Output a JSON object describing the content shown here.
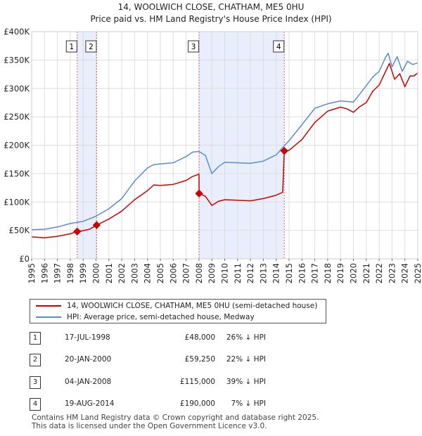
{
  "chart_data": {
    "type": "line",
    "title": "14, WOOLWICH CLOSE, CHATHAM, ME5 0HU",
    "subtitle": "Price paid vs. HM Land Registry's House Price Index (HPI)",
    "xlim": [
      1995,
      2025
    ],
    "ylim": [
      0,
      400000
    ],
    "x_ticks": [
      "1995",
      "1996",
      "1997",
      "1998",
      "1999",
      "2000",
      "2001",
      "2002",
      "2003",
      "2004",
      "2005",
      "2006",
      "2007",
      "2008",
      "2009",
      "2010",
      "2011",
      "2012",
      "2013",
      "2014",
      "2015",
      "2016",
      "2017",
      "2018",
      "2019",
      "2020",
      "2021",
      "2022",
      "2023",
      "2024",
      "2025"
    ],
    "y_ticks": [
      {
        "value": 0,
        "label": "£0"
      },
      {
        "value": 50000,
        "label": "£50K"
      },
      {
        "value": 100000,
        "label": "£100K"
      },
      {
        "value": 150000,
        "label": "£150K"
      },
      {
        "value": 200000,
        "label": "£200K"
      },
      {
        "value": 250000,
        "label": "£250K"
      },
      {
        "value": 300000,
        "label": "£300K"
      },
      {
        "value": 350000,
        "label": "£350K"
      },
      {
        "value": 400000,
        "label": "£400K"
      }
    ],
    "grid": true,
    "shaded_periods": [
      [
        1998.54,
        2000.05
      ],
      [
        2008.01,
        2014.63
      ]
    ],
    "series": [
      {
        "name": "14, WOOLWICH CLOSE, CHATHAM, ME5 0HU (semi-detached house)",
        "color": "#cc0000",
        "points": [
          [
            1995.0,
            38500
          ],
          [
            1996.0,
            37000
          ],
          [
            1997.0,
            39500
          ],
          [
            1998.0,
            44000
          ],
          [
            1998.54,
            48000
          ],
          [
            1999.0,
            49500
          ],
          [
            1999.5,
            52000
          ],
          [
            2000.05,
            59250
          ],
          [
            2001.0,
            70000
          ],
          [
            2002.0,
            84000
          ],
          [
            2003.0,
            104000
          ],
          [
            2004.0,
            120000
          ],
          [
            2004.5,
            130000
          ],
          [
            2005.0,
            129000
          ],
          [
            2006.0,
            131000
          ],
          [
            2007.0,
            138000
          ],
          [
            2007.5,
            145000
          ],
          [
            2008.0,
            149000
          ],
          [
            2008.01,
            115000
          ],
          [
            2008.5,
            110000
          ],
          [
            2009.0,
            94000
          ],
          [
            2009.5,
            101000
          ],
          [
            2010.0,
            104000
          ],
          [
            2011.0,
            103000
          ],
          [
            2012.0,
            102000
          ],
          [
            2013.0,
            106000
          ],
          [
            2014.0,
            112000
          ],
          [
            2014.5,
            117000
          ],
          [
            2014.63,
            190000
          ],
          [
            2015.0,
            191000
          ],
          [
            2016.0,
            210000
          ],
          [
            2017.0,
            240000
          ],
          [
            2017.5,
            250000
          ],
          [
            2018.0,
            260000
          ],
          [
            2019.0,
            267000
          ],
          [
            2019.5,
            264000
          ],
          [
            2020.0,
            258000
          ],
          [
            2020.5,
            268000
          ],
          [
            2021.0,
            275000
          ],
          [
            2021.5,
            295000
          ],
          [
            2022.0,
            306000
          ],
          [
            2022.5,
            330000
          ],
          [
            2022.8,
            344000
          ],
          [
            2023.2,
            316000
          ],
          [
            2023.6,
            326000
          ],
          [
            2024.0,
            303000
          ],
          [
            2024.4,
            322000
          ],
          [
            2024.7,
            322000
          ],
          [
            2025.0,
            327000
          ]
        ]
      },
      {
        "name": "HPI: Average price, semi-detached house, Medway",
        "color": "#5b8ccc",
        "points": [
          [
            1995.0,
            51000
          ],
          [
            1996.0,
            52000
          ],
          [
            1997.0,
            56000
          ],
          [
            1998.0,
            62000
          ],
          [
            1999.0,
            66000
          ],
          [
            2000.0,
            75000
          ],
          [
            2001.0,
            88000
          ],
          [
            2002.0,
            106000
          ],
          [
            2003.0,
            137000
          ],
          [
            2004.0,
            160000
          ],
          [
            2004.5,
            166000
          ],
          [
            2005.0,
            167000
          ],
          [
            2006.0,
            169000
          ],
          [
            2007.0,
            180000
          ],
          [
            2007.5,
            188000
          ],
          [
            2008.0,
            189000
          ],
          [
            2008.5,
            182000
          ],
          [
            2009.0,
            150000
          ],
          [
            2009.5,
            162000
          ],
          [
            2010.0,
            170000
          ],
          [
            2011.0,
            169000
          ],
          [
            2012.0,
            168000
          ],
          [
            2013.0,
            172000
          ],
          [
            2014.0,
            183000
          ],
          [
            2014.63,
            199000
          ],
          [
            2015.0,
            208000
          ],
          [
            2016.0,
            236000
          ],
          [
            2017.0,
            265000
          ],
          [
            2018.0,
            273000
          ],
          [
            2019.0,
            278000
          ],
          [
            2020.0,
            276000
          ],
          [
            2020.5,
            290000
          ],
          [
            2021.0,
            305000
          ],
          [
            2021.5,
            320000
          ],
          [
            2022.0,
            330000
          ],
          [
            2022.5,
            355000
          ],
          [
            2022.7,
            362000
          ],
          [
            2023.0,
            338000
          ],
          [
            2023.4,
            356000
          ],
          [
            2023.8,
            330000
          ],
          [
            2024.2,
            348000
          ],
          [
            2024.6,
            342000
          ],
          [
            2025.0,
            345000
          ]
        ]
      }
    ],
    "transactions": [
      {
        "num": "1",
        "date": "17-JUL-1998",
        "x": 1998.54,
        "price_value": 48000,
        "price": "£48,000",
        "hpi": "26% ↓ HPI"
      },
      {
        "num": "2",
        "date": "20-JAN-2000",
        "x": 2000.05,
        "price_value": 59250,
        "price": "£59,250",
        "hpi": "22% ↓ HPI"
      },
      {
        "num": "3",
        "date": "04-JAN-2008",
        "x": 2008.01,
        "price_value": 115000,
        "price": "£115,000",
        "hpi": "39% ↓ HPI"
      },
      {
        "num": "4",
        "date": "19-AUG-2014",
        "x": 2014.63,
        "price_value": 190000,
        "price": "£190,000",
        "hpi": "7% ↓ HPI"
      }
    ]
  },
  "footer": {
    "line1": "Contains HM Land Registry data © Crown copyright and database right 2025.",
    "line2": "This data is licensed under the Open Government Licence v3.0."
  }
}
